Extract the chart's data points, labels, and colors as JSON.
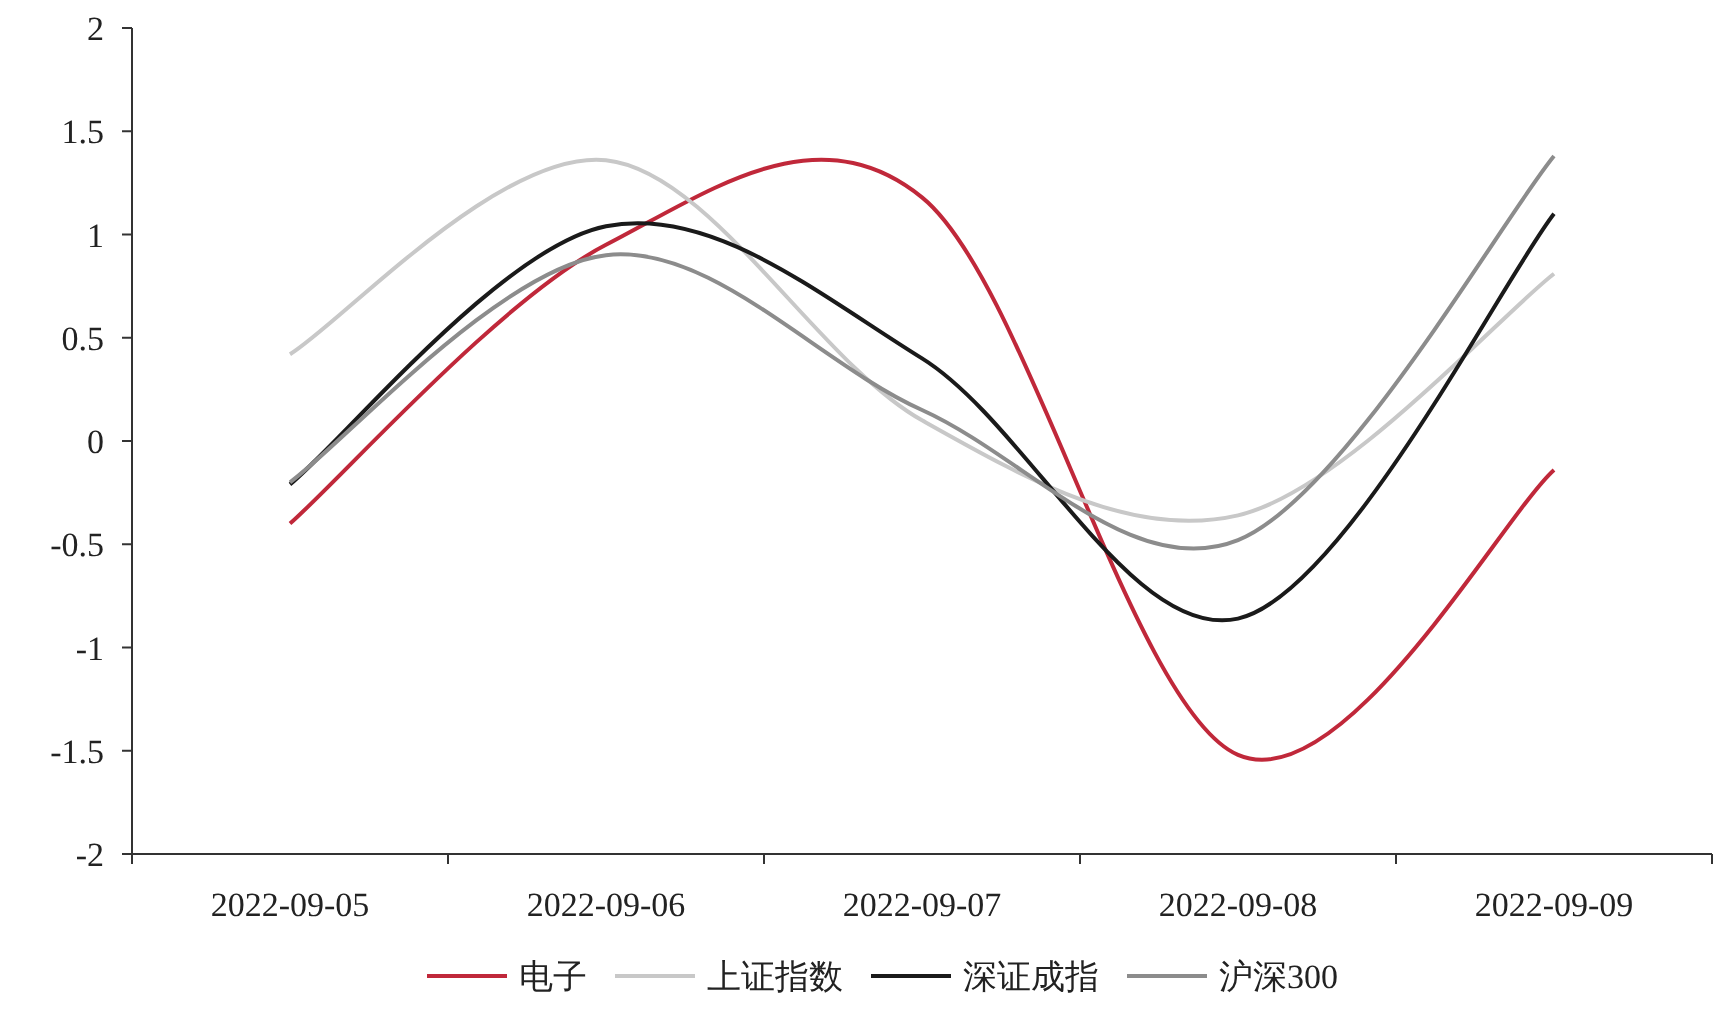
{
  "chart_data": {
    "type": "line",
    "categories": [
      "2022-09-05",
      "2022-09-06",
      "2022-09-07",
      "2022-09-08",
      "2022-09-09"
    ],
    "series": [
      {
        "name": "电子",
        "color": "#c0283a",
        "values": [
          -0.4,
          0.95,
          1.18,
          -1.52,
          -0.14
        ]
      },
      {
        "name": "上证指数",
        "color": "#c8c8c8",
        "values": [
          0.42,
          1.36,
          0.1,
          -0.36,
          0.81
        ]
      },
      {
        "name": "深证成指",
        "color": "#1a1a1a",
        "values": [
          -0.21,
          1.04,
          0.4,
          -0.86,
          1.1
        ]
      },
      {
        "name": "沪深300",
        "color": "#8c8c8c",
        "values": [
          -0.2,
          0.9,
          0.15,
          -0.48,
          1.38
        ]
      }
    ],
    "ylim": [
      -2,
      2
    ],
    "yticks": [
      -2,
      -1.5,
      -1,
      -0.5,
      0,
      0.5,
      1,
      1.5,
      2
    ],
    "grid": false,
    "legend": "bottom",
    "marker": "none",
    "line_style": "solid"
  }
}
